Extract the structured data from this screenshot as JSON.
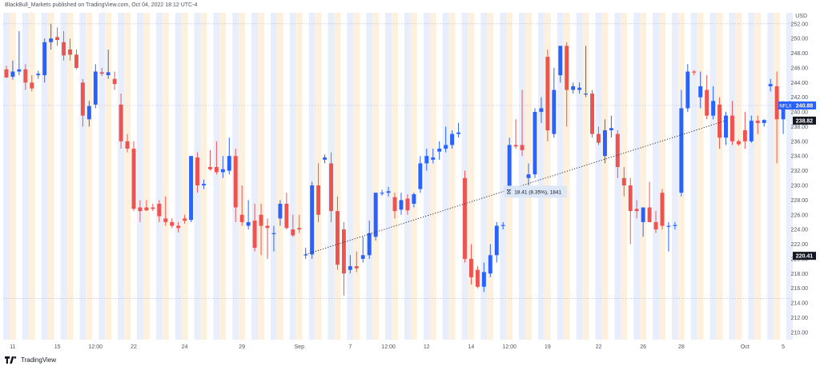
{
  "header": {
    "text": "BlackBull_Markets published on TradingView.com, Oct 04, 2022 18:12 UTC-4"
  },
  "footer": {
    "brand": "TradingView"
  },
  "colors": {
    "up": "#2962ff",
    "down": "#ef5350",
    "band_orange": "#fdf1de",
    "band_blue": "#e8eefb",
    "tooltip_bg": "#dbe6f5"
  },
  "chart_data": {
    "type": "candlestick",
    "symbol": "NFLX",
    "currency": "USD",
    "ylim": [
      209,
      253.5
    ],
    "y_ticks": [
      210,
      212,
      214,
      216,
      218,
      220,
      222,
      224,
      226,
      228,
      230,
      232,
      234,
      236,
      238,
      240,
      242,
      244,
      246,
      248,
      250,
      252
    ],
    "x_ticks": [
      {
        "label": "11",
        "i": 1
      },
      {
        "label": "15",
        "i": 8
      },
      {
        "label": "12:00",
        "i": 14
      },
      {
        "label": "22",
        "i": 20
      },
      {
        "label": "24",
        "i": 28
      },
      {
        "label": "29",
        "i": 37
      },
      {
        "label": "Sep",
        "i": 46
      },
      {
        "label": "7",
        "i": 54
      },
      {
        "label": "12:00",
        "i": 60
      },
      {
        "label": "12",
        "i": 66
      },
      {
        "label": "14",
        "i": 73
      },
      {
        "label": "12:00",
        "i": 79
      },
      {
        "label": "19",
        "i": 85
      },
      {
        "label": "22",
        "i": 93
      },
      {
        "label": "26",
        "i": 100
      },
      {
        "label": "28",
        "i": 106
      },
      {
        "label": "Oct",
        "i": 116
      },
      {
        "label": "5",
        "i": 122
      }
    ],
    "candles": [
      [
        245.8,
        246.3,
        244.6,
        244.7
      ],
      [
        244.8,
        247.0,
        244.4,
        245.5
      ],
      [
        245.5,
        251.0,
        245.0,
        245.8
      ],
      [
        245.8,
        246.5,
        243.0,
        244.0
      ],
      [
        244.0,
        245.0,
        242.8,
        243.2
      ],
      [
        245.0,
        245.6,
        244.5,
        245.2
      ],
      [
        245.0,
        250.0,
        244.0,
        249.5
      ],
      [
        249.5,
        252.0,
        248.5,
        250.0
      ],
      [
        250.2,
        251.5,
        249.0,
        249.8
      ],
      [
        249.5,
        251.0,
        247.0,
        247.7
      ],
      [
        248.5,
        250.0,
        247.0,
        247.8
      ],
      [
        247.8,
        248.5,
        245.8,
        246.0
      ],
      [
        244.0,
        244.5,
        238.0,
        239.5
      ],
      [
        239.0,
        241.5,
        238.0,
        240.8
      ],
      [
        241.0,
        246.5,
        240.5,
        245.5
      ],
      [
        245.4,
        246.0,
        244.9,
        245.2
      ],
      [
        245.0,
        248.5,
        244.5,
        245.4
      ],
      [
        244.5,
        245.5,
        243.0,
        243.8
      ],
      [
        241.0,
        242.5,
        235.0,
        236.0
      ],
      [
        236.0,
        237.0,
        234.5,
        235.0
      ],
      [
        235.0,
        236.0,
        226.5,
        226.8
      ],
      [
        227.0,
        228.0,
        225.0,
        226.5
      ],
      [
        227.0,
        228.0,
        226.5,
        226.6
      ],
      [
        227.0,
        227.5,
        226.5,
        226.8
      ],
      [
        227.5,
        228.0,
        225.0,
        225.8
      ],
      [
        225.5,
        228.5,
        224.5,
        225.0
      ],
      [
        225.0,
        225.5,
        224.2,
        224.5
      ],
      [
        224.5,
        225.0,
        223.6,
        224.2
      ],
      [
        225.5,
        226.0,
        224.8,
        225.2
      ],
      [
        225.3,
        234.0,
        225.0,
        234.0
      ],
      [
        233.8,
        234.5,
        229.0,
        230.0
      ],
      [
        230.0,
        230.8,
        229.5,
        230.2
      ],
      [
        232.5,
        234.8,
        232.0,
        232.2
      ],
      [
        232.5,
        236.0,
        231.5,
        231.8
      ],
      [
        231.8,
        234.0,
        231.0,
        232.2
      ],
      [
        232.0,
        236.5,
        231.5,
        234.0
      ],
      [
        234.0,
        235.0,
        225.0,
        227.0
      ],
      [
        226.0,
        230.0,
        224.5,
        225.0
      ],
      [
        224.5,
        228.0,
        224.0,
        225.0
      ],
      [
        225.2,
        227.5,
        221.0,
        221.5
      ],
      [
        226.0,
        227.5,
        220.5,
        224.5
      ],
      [
        224.5,
        225.5,
        220.0,
        224.2
      ],
      [
        223.5,
        224.5,
        221.0,
        223.5
      ],
      [
        225.5,
        228.0,
        224.5,
        227.5
      ],
      [
        227.5,
        229.0,
        224.0,
        224.2
      ],
      [
        224.0,
        226.0,
        223.0,
        223.2
      ],
      [
        224.2,
        226.0,
        223.5,
        224.0
      ],
      [
        220.5,
        221.5,
        220.0,
        220.6
      ],
      [
        220.6,
        230.5,
        220.0,
        230.0
      ],
      [
        230.0,
        233.0,
        225.0,
        226.0
      ],
      [
        233.5,
        234.2,
        233.0,
        233.8
      ],
      [
        233.0,
        234.5,
        225.0,
        226.5
      ],
      [
        226.5,
        228.5,
        218.5,
        219.2
      ],
      [
        224.0,
        225.0,
        215.0,
        218.0
      ],
      [
        218.5,
        220.5,
        218.0,
        219.0
      ],
      [
        219.0,
        221.0,
        218.2,
        218.7
      ],
      [
        220.0,
        223.0,
        219.5,
        220.5
      ],
      [
        220.5,
        225.2,
        220.0,
        223.5
      ],
      [
        223.0,
        229.0,
        222.5,
        229.0
      ],
      [
        229.0,
        229.4,
        228.6,
        229.0
      ],
      [
        229.0,
        229.8,
        228.5,
        229.2
      ],
      [
        228.4,
        229.0,
        225.5,
        226.5
      ],
      [
        226.7,
        229.0,
        226.0,
        228.0
      ],
      [
        228.2,
        228.8,
        226.0,
        226.6
      ],
      [
        227.5,
        229.0,
        227.0,
        228.8
      ],
      [
        229.5,
        234.0,
        229.0,
        233.0
      ],
      [
        233.0,
        235.0,
        232.0,
        234.0
      ],
      [
        233.5,
        235.0,
        233.0,
        233.8
      ],
      [
        234.6,
        236.0,
        233.5,
        235.0
      ],
      [
        235.0,
        238.0,
        234.5,
        235.5
      ],
      [
        235.5,
        237.5,
        235.0,
        237.0
      ],
      [
        237.0,
        238.5,
        236.5,
        237.2
      ],
      [
        231.0,
        232.0,
        219.5,
        220.0
      ],
      [
        220.0,
        222.0,
        216.5,
        217.5
      ],
      [
        218.5,
        219.0,
        216.0,
        216.2
      ],
      [
        216.2,
        219.5,
        215.5,
        218.2
      ],
      [
        218.0,
        222.0,
        217.5,
        220.5
      ],
      [
        220.5,
        225.0,
        219.5,
        224.5
      ],
      [
        224.5,
        225.0,
        224.0,
        224.6
      ],
      [
        229.0,
        236.5,
        228.5,
        235.5
      ],
      [
        235.5,
        239.0,
        235.0,
        235.3
      ],
      [
        235.5,
        243.0,
        234.0,
        234.8
      ],
      [
        231.0,
        233.0,
        230.0,
        231.5
      ],
      [
        231.5,
        240.5,
        231.0,
        240.0
      ],
      [
        240.0,
        242.0,
        238.5,
        240.5
      ],
      [
        247.5,
        248.5,
        236.0,
        237.5
      ],
      [
        237.0,
        246.0,
        236.5,
        243.0
      ],
      [
        245.0,
        249.0,
        244.0,
        249.0
      ],
      [
        249.0,
        249.5,
        238.0,
        243.0
      ],
      [
        243.0,
        244.0,
        242.5,
        243.5
      ],
      [
        243.0,
        244.0,
        242.5,
        243.3
      ],
      [
        242.5,
        249.0,
        242.0,
        242.5
      ],
      [
        242.5,
        243.0,
        236.5,
        237.0
      ],
      [
        237.0,
        238.0,
        235.5,
        235.8
      ],
      [
        234.0,
        239.0,
        233.0,
        237.5
      ],
      [
        237.5,
        239.5,
        236.5,
        237.8
      ],
      [
        237.0,
        237.5,
        231.0,
        232.5
      ],
      [
        231.0,
        232.5,
        228.5,
        230.0
      ],
      [
        230.0,
        231.0,
        222.0,
        226.5
      ],
      [
        226.8,
        228.0,
        225.5,
        226.5
      ],
      [
        225.0,
        227.0,
        223.0,
        227.0
      ],
      [
        227.0,
        230.5,
        225.0,
        225.0
      ],
      [
        225.0,
        226.5,
        223.5,
        224.0
      ],
      [
        229.0,
        229.5,
        224.0,
        224.5
      ],
      [
        224.5,
        225.0,
        221.0,
        224.5
      ],
      [
        224.5,
        225.0,
        224.0,
        224.6
      ],
      [
        229.0,
        243.0,
        228.5,
        240.5
      ],
      [
        240.5,
        246.5,
        240.0,
        245.5
      ],
      [
        245.5,
        245.7,
        245.0,
        245.4
      ],
      [
        242.0,
        245.5,
        240.5,
        243.5
      ],
      [
        243.0,
        245.0,
        239.0,
        239.5
      ],
      [
        239.5,
        243.5,
        239.0,
        241.5
      ],
      [
        241.0,
        242.0,
        235.0,
        236.5
      ],
      [
        236.5,
        240.0,
        235.5,
        239.5
      ],
      [
        239.5,
        241.5,
        235.5,
        236.0
      ],
      [
        236.0,
        236.2,
        235.4,
        235.6
      ],
      [
        237.5,
        240.0,
        235.0,
        236.0
      ],
      [
        236.0,
        239.5,
        235.8,
        238.8
      ],
      [
        238.8,
        239.5,
        237.0,
        238.5
      ],
      [
        238.5,
        239.0,
        238.0,
        238.9
      ],
      [
        243.5,
        244.5,
        242.8,
        243.8
      ],
      [
        243.5,
        245.5,
        233.0,
        239.0
      ],
      [
        239.0,
        241.5,
        237.0,
        240.5
      ],
      [
        240.5,
        241.5,
        240.3,
        240.9
      ]
    ],
    "trendline": {
      "from": {
        "i": 47,
        "y": 220.6
      },
      "to": {
        "i": 113,
        "y": 238.82
      }
    },
    "measure": {
      "text": "18.41 (8.35%), 1841"
    },
    "last_price": {
      "label": "NFLX",
      "value": "240.88"
    },
    "reference_price": {
      "value": "238.82"
    },
    "low_marker": {
      "value": "220.41"
    },
    "hlines": [
      252.0,
      240.88,
      214.6
    ]
  }
}
